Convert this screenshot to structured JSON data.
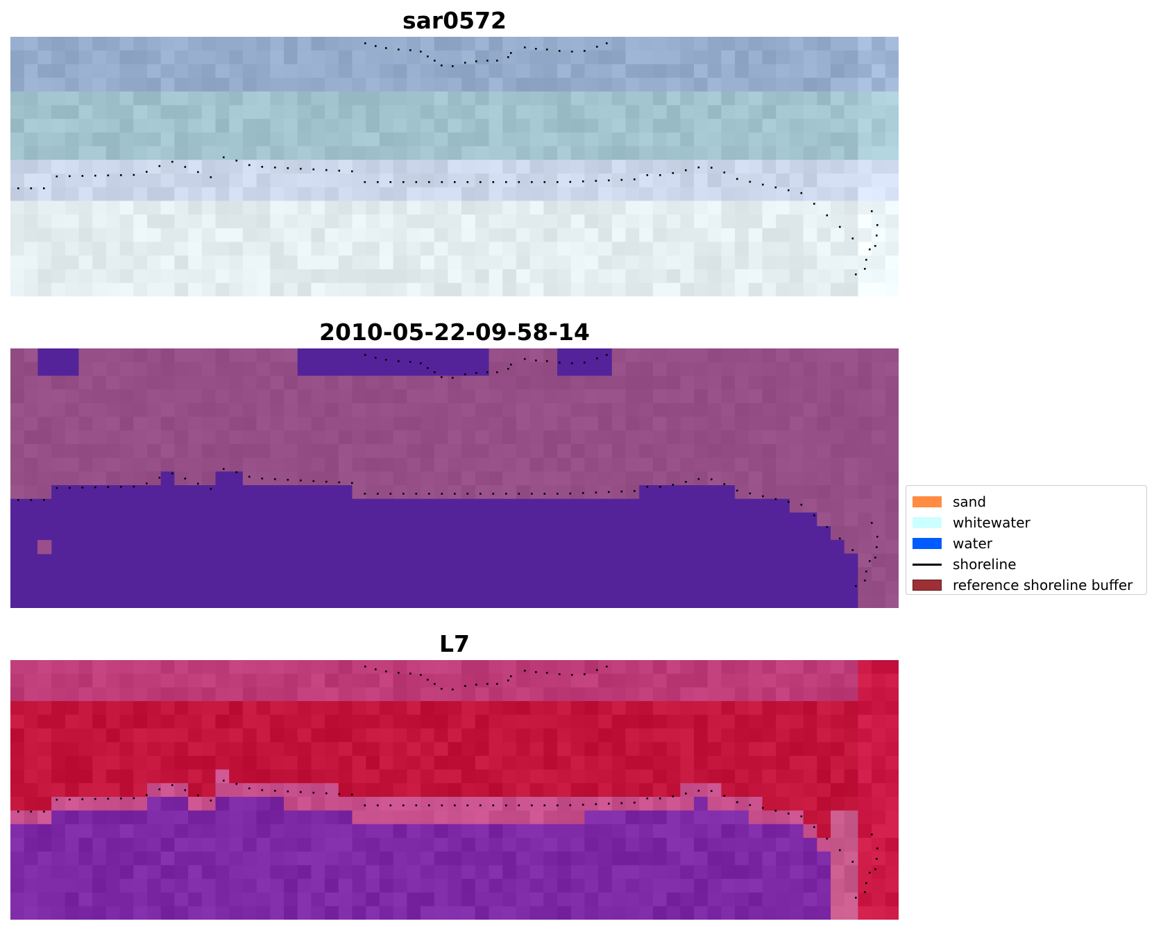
{
  "panels": [
    {
      "title": "sar0572",
      "style": "rgb"
    },
    {
      "title": "2010-05-22-09-58-14",
      "style": "classified"
    },
    {
      "title": "L7",
      "style": "index"
    }
  ],
  "legend": {
    "items": [
      {
        "label": "sand",
        "kind": "patch",
        "color": "#ff8c42",
        "border": "none"
      },
      {
        "label": "whitewater",
        "kind": "patch",
        "color": "#ccffff",
        "border": "none"
      },
      {
        "label": "water",
        "kind": "patch",
        "color": "#005cff",
        "border": "none"
      },
      {
        "label": "shoreline",
        "kind": "line",
        "color": "#000000",
        "border": "none"
      },
      {
        "label": "reference shoreline buffer",
        "kind": "patch",
        "color": "#9e3035",
        "border": "#5a1a1a"
      }
    ]
  },
  "colors": {
    "classified_water": "#54239a",
    "classified_land": "#9a4f8a",
    "index_high": "#c0103a",
    "index_low": "#7a2aa0",
    "shoreline_dots": "#000000"
  }
}
